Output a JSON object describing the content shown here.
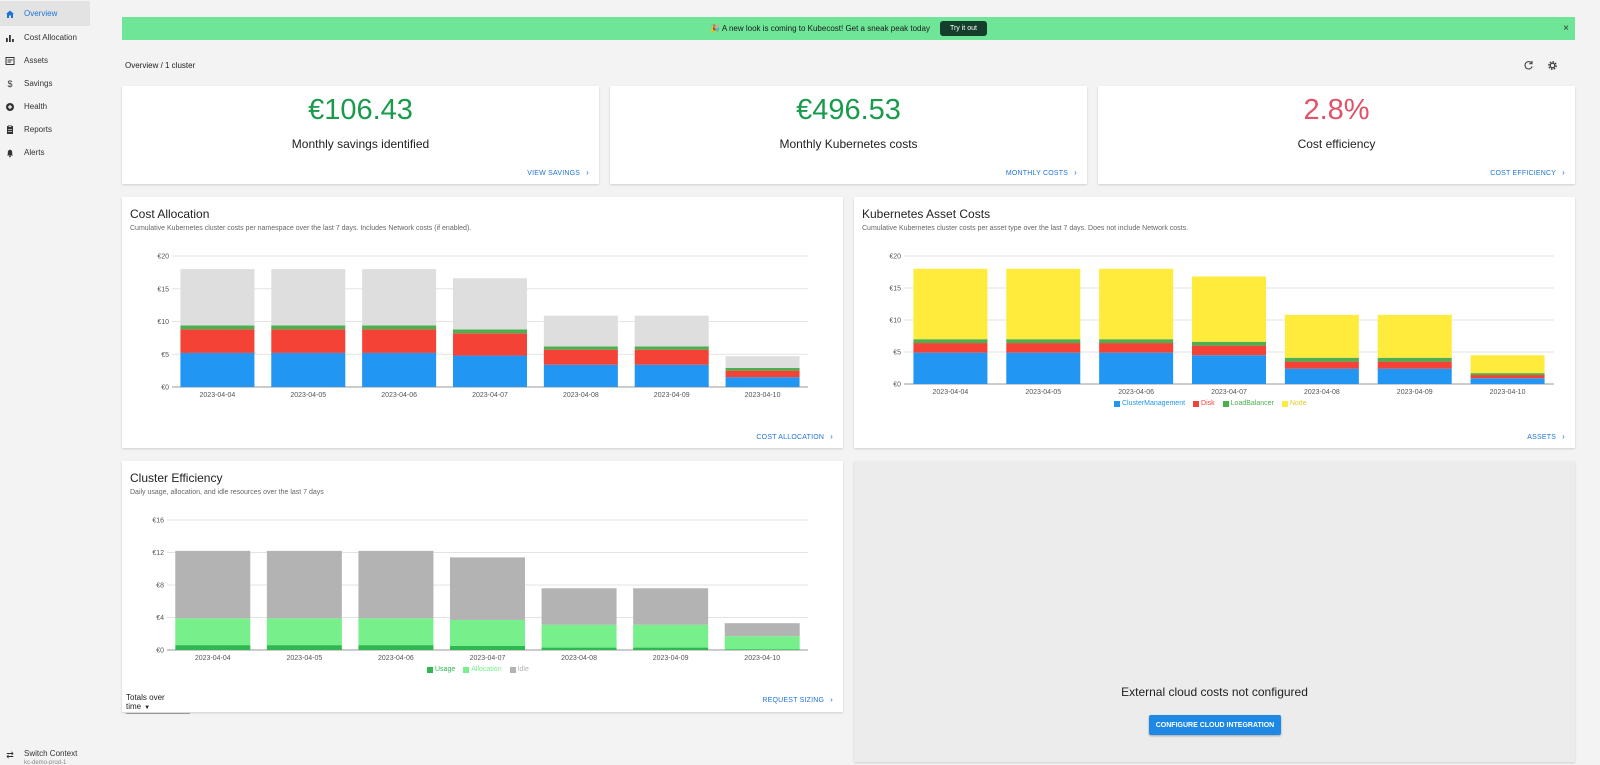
{
  "sidebar": {
    "items": [
      {
        "label": "Overview",
        "icon": "home-icon"
      },
      {
        "label": "Cost Allocation",
        "icon": "bar-chart-icon"
      },
      {
        "label": "Assets",
        "icon": "assets-icon"
      },
      {
        "label": "Savings",
        "icon": "dollar-icon"
      },
      {
        "label": "Health",
        "icon": "health-icon"
      },
      {
        "label": "Reports",
        "icon": "reports-icon"
      },
      {
        "label": "Alerts",
        "icon": "bell-icon"
      }
    ],
    "switch_context": {
      "label": "Switch Context",
      "sub": "kc-demo-prod-1"
    }
  },
  "banner": {
    "text": "🎉 A new look is coming to Kubecost! Get a sneak peak today",
    "button": "Try it out",
    "close": "×"
  },
  "breadcrumb": "Overview / 1 cluster",
  "kpis": [
    {
      "value": "€106.43",
      "label": "Monthly savings identified",
      "link": "VIEW SAVINGS",
      "color": "#1a9a4b"
    },
    {
      "value": "€496.53",
      "label": "Monthly Kubernetes costs",
      "link": "MONTHLY COSTS",
      "color": "#1a9a4b"
    },
    {
      "value": "2.8%",
      "label": "Cost efficiency",
      "link": "COST EFFICIENCY",
      "color": "#e05268"
    }
  ],
  "cost_allocation": {
    "title": "Cost Allocation",
    "subtitle": "Cumulative Kubernetes cluster costs per namespace over the last 7 days. Includes Network costs (if enabled).",
    "link": "COST ALLOCATION"
  },
  "asset_costs": {
    "title": "Kubernetes Asset Costs",
    "subtitle": "Cumulative Kubernetes cluster costs per asset type over the last 7 days. Does not include Network costs.",
    "link": "ASSETS"
  },
  "cluster_efficiency": {
    "title": "Cluster Efficiency",
    "subtitle": "Daily usage, allocation, and idle resources over the last 7 days",
    "link": "REQUEST SIZING",
    "totals_label": "Totals over time"
  },
  "external": {
    "title": "External cloud costs not configured",
    "button": "CONFIGURE CLOUD INTEGRATION"
  },
  "chart_data": [
    {
      "type": "bar",
      "stacked": true,
      "id": "cost-allocation",
      "categories": [
        "2023-04-04",
        "2023-04-05",
        "2023-04-06",
        "2023-04-07",
        "2023-04-08",
        "2023-04-09",
        "2023-04-10"
      ],
      "yticks": [
        "€0",
        "€5",
        "€10",
        "€15",
        "€20"
      ],
      "ylim": [
        0,
        20
      ],
      "series": [
        {
          "values": [
            5.2,
            5.2,
            5.2,
            4.8,
            3.4,
            3.4,
            1.5
          ],
          "color": "#2196f3"
        },
        {
          "values": [
            3.6,
            3.6,
            3.6,
            3.4,
            2.3,
            2.3,
            1.0
          ],
          "color": "#f44336"
        },
        {
          "values": [
            0.6,
            0.6,
            0.6,
            0.6,
            0.5,
            0.5,
            0.4
          ],
          "color": "#4caf50"
        },
        {
          "values": [
            8.6,
            8.6,
            8.6,
            7.8,
            4.7,
            4.7,
            1.8
          ],
          "color": "#dedede"
        }
      ]
    },
    {
      "type": "bar",
      "stacked": true,
      "id": "asset-costs",
      "categories": [
        "2023-04-04",
        "2023-04-05",
        "2023-04-06",
        "2023-04-07",
        "2023-04-08",
        "2023-04-09",
        "2023-04-10"
      ],
      "yticks": [
        "€0",
        "€5",
        "€10",
        "€15",
        "€20"
      ],
      "ylim": [
        0,
        20
      ],
      "series": [
        {
          "name": "ClusterManagement",
          "values": [
            4.9,
            4.9,
            4.9,
            4.5,
            2.4,
            2.4,
            0.9
          ],
          "color": "#2196f3"
        },
        {
          "name": "Disk",
          "values": [
            1.5,
            1.5,
            1.5,
            1.5,
            1.1,
            1.1,
            0.5
          ],
          "color": "#f44336"
        },
        {
          "name": "LoadBalancer",
          "values": [
            0.6,
            0.6,
            0.6,
            0.6,
            0.6,
            0.6,
            0.3
          ],
          "color": "#4caf50"
        },
        {
          "name": "Node",
          "values": [
            11.0,
            11.0,
            11.0,
            10.2,
            6.7,
            6.7,
            2.8
          ],
          "color": "#ffeb3b"
        }
      ]
    },
    {
      "type": "bar",
      "stacked": true,
      "id": "cluster-efficiency",
      "categories": [
        "2023-04-04",
        "2023-04-05",
        "2023-04-06",
        "2023-04-07",
        "2023-04-08",
        "2023-04-09",
        "2023-04-10"
      ],
      "yticks": [
        "€0",
        "€4",
        "€8",
        "€12",
        "€16"
      ],
      "ylim": [
        0,
        16
      ],
      "series": [
        {
          "name": "Usage",
          "values": [
            0.6,
            0.6,
            0.6,
            0.5,
            0.3,
            0.3,
            0.1
          ],
          "color": "#2eb84f"
        },
        {
          "name": "Allocation",
          "values": [
            3.3,
            3.3,
            3.3,
            3.2,
            2.8,
            2.8,
            1.6
          ],
          "color": "#77f08c"
        },
        {
          "name": "Idle",
          "values": [
            8.3,
            8.3,
            8.3,
            7.7,
            4.5,
            4.5,
            1.6
          ],
          "color": "#b3b3b3"
        }
      ]
    }
  ]
}
